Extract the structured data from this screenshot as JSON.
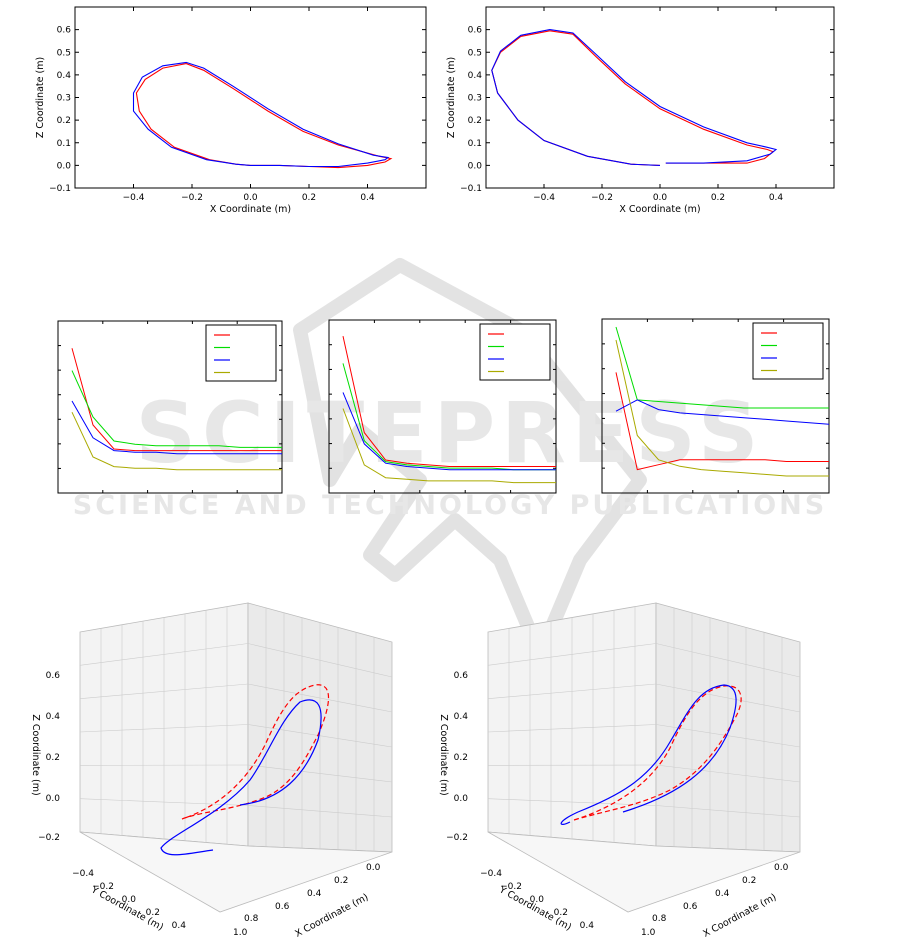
{
  "watermark": {
    "title": "SCITEPRESS",
    "subtitle": "SCIENCE AND TECHNOLOGY PUBLICATIONS"
  },
  "chart_data": [
    {
      "type": "line",
      "panel": "top-left",
      "xlabel": "X Coordinate (m)",
      "ylabel": "Z Coordinate (m)",
      "xlim": [
        -0.6,
        0.6
      ],
      "ylim": [
        -0.1,
        0.7
      ],
      "xticks": [
        "−0.4",
        "−0.2",
        "0.0",
        "0.2",
        "0.4"
      ],
      "yticks": [
        "−0.1",
        "0.0",
        "0.1",
        "0.2",
        "0.3",
        "0.4",
        "0.5",
        "0.6"
      ],
      "series": [
        {
          "color": "#ff0000",
          "points": [
            [
              0.0,
              0.0
            ],
            [
              0.1,
              0.0
            ],
            [
              0.2,
              -0.005
            ],
            [
              0.3,
              -0.01
            ],
            [
              0.4,
              0.0
            ],
            [
              0.46,
              0.015
            ],
            [
              0.48,
              0.03
            ],
            [
              0.44,
              0.04
            ],
            [
              0.3,
              0.09
            ],
            [
              0.18,
              0.15
            ],
            [
              0.06,
              0.24
            ],
            [
              -0.06,
              0.34
            ],
            [
              -0.16,
              0.42
            ],
            [
              -0.22,
              0.45
            ],
            [
              -0.3,
              0.43
            ],
            [
              -0.36,
              0.38
            ],
            [
              -0.39,
              0.32
            ],
            [
              -0.38,
              0.24
            ],
            [
              -0.34,
              0.16
            ],
            [
              -0.26,
              0.08
            ],
            [
              -0.14,
              0.025
            ],
            [
              -0.05,
              0.005
            ],
            [
              0.0,
              0.0
            ]
          ]
        },
        {
          "color": "#0000ff",
          "points": [
            [
              0.0,
              0.0
            ],
            [
              0.1,
              0.0
            ],
            [
              0.2,
              -0.005
            ],
            [
              0.3,
              -0.005
            ],
            [
              0.4,
              0.01
            ],
            [
              0.46,
              0.025
            ],
            [
              0.47,
              0.035
            ],
            [
              0.42,
              0.045
            ],
            [
              0.3,
              0.095
            ],
            [
              0.18,
              0.16
            ],
            [
              0.06,
              0.25
            ],
            [
              -0.06,
              0.35
            ],
            [
              -0.16,
              0.43
            ],
            [
              -0.22,
              0.455
            ],
            [
              -0.3,
              0.44
            ],
            [
              -0.37,
              0.39
            ],
            [
              -0.4,
              0.32
            ],
            [
              -0.4,
              0.24
            ],
            [
              -0.35,
              0.16
            ],
            [
              -0.27,
              0.08
            ],
            [
              -0.15,
              0.025
            ],
            [
              -0.05,
              0.005
            ],
            [
              0.0,
              0.0
            ]
          ]
        }
      ]
    },
    {
      "type": "line",
      "panel": "top-right",
      "xlabel": "X Coordinate (m)",
      "ylabel": "Z Coordinate (m)",
      "xlim": [
        -0.6,
        0.6
      ],
      "ylim": [
        -0.1,
        0.7
      ],
      "xticks": [
        "−0.4",
        "−0.2",
        "0.0",
        "0.2",
        "0.4"
      ],
      "yticks": [
        "−0.1",
        "0.0",
        "0.1",
        "0.2",
        "0.3",
        "0.4",
        "0.5",
        "0.6"
      ],
      "series": [
        {
          "color": "#ff0000",
          "points": [
            [
              0.02,
              0.01
            ],
            [
              0.15,
              0.01
            ],
            [
              0.3,
              0.01
            ],
            [
              0.36,
              0.03
            ],
            [
              0.39,
              0.06
            ],
            [
              0.37,
              0.07
            ],
            [
              0.3,
              0.09
            ],
            [
              0.15,
              0.16
            ],
            [
              0.0,
              0.25
            ],
            [
              -0.12,
              0.36
            ],
            [
              -0.22,
              0.48
            ],
            [
              -0.3,
              0.58
            ],
            [
              -0.38,
              0.595
            ],
            [
              -0.48,
              0.57
            ],
            [
              -0.55,
              0.5
            ],
            [
              -0.58,
              0.42
            ],
            [
              -0.56,
              0.32
            ],
            [
              -0.49,
              0.2
            ],
            [
              -0.4,
              0.11
            ],
            [
              -0.25,
              0.04
            ],
            [
              -0.1,
              0.005
            ],
            [
              0.0,
              0.0
            ]
          ]
        },
        {
          "color": "#0000ff",
          "points": [
            [
              0.02,
              0.01
            ],
            [
              0.15,
              0.01
            ],
            [
              0.3,
              0.02
            ],
            [
              0.38,
              0.05
            ],
            [
              0.4,
              0.07
            ],
            [
              0.37,
              0.08
            ],
            [
              0.3,
              0.1
            ],
            [
              0.15,
              0.17
            ],
            [
              0.0,
              0.26
            ],
            [
              -0.12,
              0.37
            ],
            [
              -0.22,
              0.49
            ],
            [
              -0.3,
              0.585
            ],
            [
              -0.38,
              0.6
            ],
            [
              -0.48,
              0.575
            ],
            [
              -0.55,
              0.505
            ],
            [
              -0.58,
              0.42
            ],
            [
              -0.56,
              0.32
            ],
            [
              -0.49,
              0.2
            ],
            [
              -0.4,
              0.11
            ],
            [
              -0.25,
              0.04
            ],
            [
              -0.1,
              0.005
            ],
            [
              0.0,
              0.0
            ]
          ]
        }
      ]
    },
    {
      "type": "line",
      "panel": "middle-left",
      "legend": "top-right",
      "series": [
        {
          "color": "#ff0000",
          "values": [
            88,
            40,
            25,
            24,
            24,
            24,
            24,
            24,
            24,
            24,
            24
          ]
        },
        {
          "color": "#00dd00",
          "values": [
            74,
            45,
            30,
            28,
            27,
            27,
            27,
            27,
            26,
            26,
            26
          ]
        },
        {
          "color": "#0000ff",
          "values": [
            55,
            32,
            24,
            23,
            23,
            22,
            22,
            22,
            22,
            22,
            22
          ]
        },
        {
          "color": "#aaaa00",
          "values": [
            48,
            20,
            14,
            13,
            13,
            12,
            12,
            12,
            12,
            12,
            12
          ]
        }
      ]
    },
    {
      "type": "line",
      "panel": "middle-center",
      "legend": "top-right",
      "series": [
        {
          "color": "#ff0000",
          "values": [
            95,
            35,
            18,
            16,
            15,
            14,
            14,
            14,
            14,
            14,
            14
          ]
        },
        {
          "color": "#00dd00",
          "values": [
            78,
            30,
            17,
            15,
            14,
            13,
            13,
            13,
            12,
            12,
            12
          ]
        },
        {
          "color": "#0000ff",
          "values": [
            60,
            28,
            16,
            14,
            13,
            12,
            12,
            12,
            12,
            12,
            12
          ]
        },
        {
          "color": "#aaaa00",
          "values": [
            50,
            15,
            7,
            6,
            5,
            5,
            5,
            5,
            4,
            4,
            4
          ]
        }
      ]
    },
    {
      "type": "line",
      "panel": "middle-right",
      "legend": "top-right",
      "series": [
        {
          "color": "#ff0000",
          "values": [
            72,
            12,
            15,
            18,
            18,
            18,
            18,
            18,
            17,
            17,
            17
          ]
        },
        {
          "color": "#00dd00",
          "values": [
            100,
            55,
            54,
            53,
            52,
            51,
            50,
            50,
            50,
            50,
            50
          ]
        },
        {
          "color": "#0000ff",
          "values": [
            48,
            55,
            49,
            47,
            46,
            45,
            44,
            43,
            42,
            41,
            40
          ]
        },
        {
          "color": "#aaaa00",
          "values": [
            92,
            33,
            18,
            14,
            12,
            11,
            10,
            9,
            8,
            8,
            8
          ]
        }
      ]
    },
    {
      "type": "line",
      "panel": "bottom-left-3d",
      "xlabel": "X Coordinate (m)",
      "ylabel": "Y Coordinate (m)",
      "zlabel": "Z Coordinate (m)",
      "xticks": [
        "1.0",
        "0.8",
        "0.6",
        "0.4",
        "0.2",
        "0.0"
      ],
      "yticks": [
        "−0.4",
        "−0.2",
        "0.0",
        "0.2",
        "0.4"
      ],
      "zticks": [
        "−0.2",
        "0.0",
        "0.2",
        "0.4",
        "0.6"
      ],
      "series": [
        {
          "color": "#ff0000",
          "style": "dashed"
        },
        {
          "color": "#0000ff",
          "style": "solid"
        }
      ]
    },
    {
      "type": "line",
      "panel": "bottom-right-3d",
      "xlabel": "X Coordinate (m)",
      "ylabel": "Y Coordinate (m)",
      "zlabel": "Z Coordinate (m)",
      "xticks": [
        "1.0",
        "0.8",
        "0.6",
        "0.4",
        "0.2",
        "0.0"
      ],
      "yticks": [
        "−0.4",
        "−0.2",
        "0.0",
        "0.2",
        "0.4"
      ],
      "zticks": [
        "−0.2",
        "0.0",
        "0.2",
        "0.4",
        "0.6"
      ],
      "series": [
        {
          "color": "#ff0000",
          "style": "dashed"
        },
        {
          "color": "#0000ff",
          "style": "solid"
        }
      ]
    }
  ]
}
